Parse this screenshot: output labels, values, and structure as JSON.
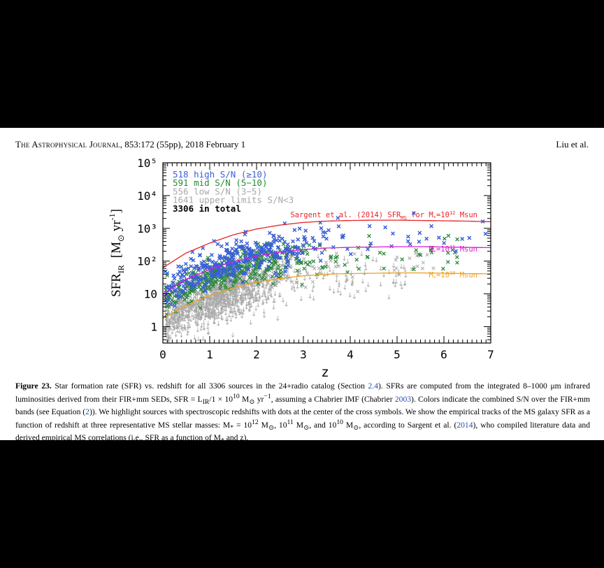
{
  "header": {
    "journal_name": "The Astrophysical Journal",
    "citation": ", 853:172 (55pp), 2018 February 1",
    "authors": "Liu et al."
  },
  "figure": {
    "legend": [
      {
        "count": "518",
        "text": "high S/N (≥10)",
        "color": "#3a5fd9"
      },
      {
        "count": "591",
        "text": "mid S/N (5−10)",
        "color": "#2a8a3a"
      },
      {
        "count": "556",
        "text": "low S/N (3−5)",
        "color": "#a8a8a8"
      },
      {
        "count": "1641",
        "text": "upper limits S/N<3",
        "color": "#a8a8a8"
      },
      {
        "count": "3306",
        "text": "in total",
        "color": "#000000"
      }
    ],
    "track_labels": [
      {
        "text": "Sargent et al. (2014) SFR",
        "sub": "MS",
        "tail": " for M",
        "tail_sub": "*",
        "eq": "=10",
        "sup": "12",
        "end": " Msun",
        "color": "#e8232a"
      },
      {
        "text": "",
        "sub": "",
        "tail": "M",
        "tail_sub": "*",
        "eq": "=10",
        "sup": "11",
        "end": " Msun",
        "color": "#d81fd0"
      },
      {
        "text": "",
        "sub": "",
        "tail": "M",
        "tail_sub": "*",
        "eq": "=10",
        "sup": "10",
        "end": " Msun",
        "color": "#f0a020"
      }
    ]
  },
  "chart_data": {
    "type": "scatter",
    "xlabel": "z",
    "ylabel": "SFR_IR [M⊙ yr⁻¹]",
    "xlim": [
      0,
      7
    ],
    "ylim_log10": [
      -0.5,
      5
    ],
    "log_y": true,
    "x_ticks": [
      "0",
      "1",
      "2",
      "3",
      "4",
      "5",
      "6",
      "7"
    ],
    "y_ticks": [
      "1",
      "10",
      "10²",
      "10³",
      "10⁴",
      "10⁵"
    ],
    "series": [
      {
        "name": "high S/N (≥10)",
        "color": "#3a5fd9",
        "count": 518
      },
      {
        "name": "mid S/N (5−10)",
        "color": "#2a8a3a",
        "count": 591
      },
      {
        "name": "low S/N (3−5)",
        "color": "#a8a8a8",
        "count": 556
      },
      {
        "name": "upper limits S/N<3",
        "color": "#a8a8a8",
        "count": 1641
      }
    ],
    "ms_tracks": [
      {
        "mass": "10^12",
        "color": "#e8232a",
        "z": [
          0.0,
          0.5,
          1.0,
          1.5,
          2.0,
          2.5,
          3.0,
          3.5,
          4.0,
          4.5,
          5.0,
          5.5,
          6.0,
          6.5,
          7.0
        ],
        "log_sfr": [
          1.8,
          2.25,
          2.55,
          2.8,
          2.98,
          3.1,
          3.18,
          3.22,
          3.24,
          3.25,
          3.25,
          3.24,
          3.23,
          3.22,
          3.2
        ]
      },
      {
        "mass": "10^11",
        "color": "#d81fd0",
        "z": [
          0.0,
          0.5,
          1.0,
          1.5,
          2.0,
          2.5,
          3.0,
          3.5,
          4.0,
          4.5,
          5.0,
          5.5,
          6.0,
          6.5,
          7.0
        ],
        "log_sfr": [
          1.0,
          1.45,
          1.75,
          1.98,
          2.15,
          2.27,
          2.35,
          2.4,
          2.42,
          2.43,
          2.44,
          2.44,
          2.43,
          2.42,
          2.41
        ]
      },
      {
        "mass": "10^10",
        "color": "#f0a020",
        "z": [
          0.0,
          0.5,
          1.0,
          1.5,
          2.0,
          2.5,
          3.0,
          3.5,
          4.0,
          4.5,
          5.0,
          5.5,
          6.0,
          6.5,
          7.0
        ],
        "log_sfr": [
          0.25,
          0.65,
          0.95,
          1.18,
          1.35,
          1.47,
          1.55,
          1.6,
          1.62,
          1.63,
          1.64,
          1.64,
          1.63,
          1.62,
          1.61
        ]
      }
    ]
  },
  "caption": {
    "label": "Figure 23.",
    "p1": " Star formation rate (SFR) vs. redshift for all 3306 sources in the 24+radio catalog (Section ",
    "ref1": "2.4",
    "p2": "). SFRs are computed from the integrated 8–1000 μm infrared luminosities derived from their FIR+mm SEDs, SFR = L",
    "sub_ir": "IR",
    "p3": "/1 × 10",
    "sup10": "10",
    "p4": " M",
    "p4b": " yr",
    "sup_m1": "−1",
    "p5": ", assuming a Chabrier IMF (Chabrier ",
    "ref2": "2003",
    "p6": "). Colors indicate the combined S/N over the FIR+mm bands (see Equation (",
    "ref3": "2",
    "p7": ")). We highlight sources with spectroscopic redshifts with dots at the center of the cross symbols. We show the empirical tracks of the MS galaxy SFR as a function of redshift at three representative MS stellar masses: M",
    "sub_star": "*",
    "p8": " = 10",
    "sup12": "12",
    "p9": " M",
    "p10": ", 10",
    "sup11": "11",
    "p11": " M",
    "p12": ", and 10",
    "sup10b": "10",
    "p13": " M",
    "p14": ", according to Sargent et al. (",
    "ref4": "2014",
    "p15": "), who compiled literature data and derived empirical MS correlations (i.e., SFR as a function of M",
    "p16": " and z)."
  }
}
